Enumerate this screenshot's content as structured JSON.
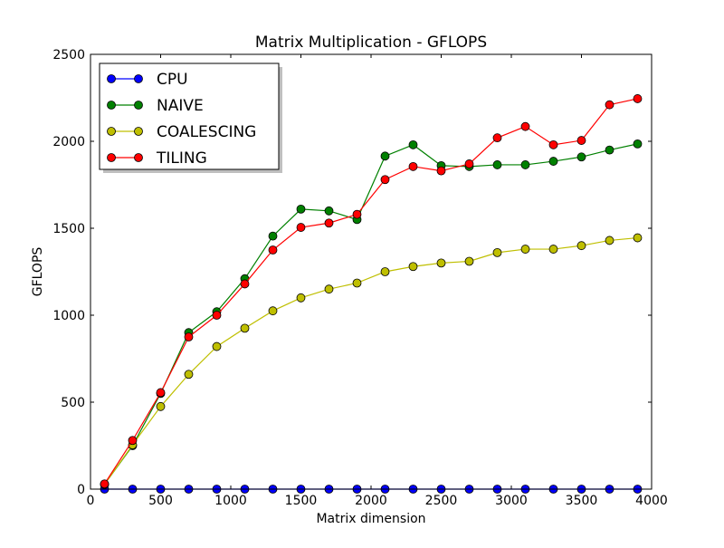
{
  "chart_data": {
    "type": "line",
    "title": "Matrix Multiplication - GFLOPS",
    "xlabel": "Matrix dimension",
    "ylabel": "GFLOPS",
    "xlim": [
      0,
      4000
    ],
    "ylim": [
      0,
      2500
    ],
    "xticks": [
      0,
      500,
      1000,
      1500,
      2000,
      2500,
      3000,
      3500,
      4000
    ],
    "yticks": [
      0,
      500,
      1000,
      1500,
      2000,
      2500
    ],
    "grid": false,
    "legend_position": "top-left",
    "x": [
      100,
      300,
      500,
      700,
      900,
      1100,
      1300,
      1500,
      1700,
      1900,
      2100,
      2300,
      2500,
      2700,
      2900,
      3100,
      3300,
      3500,
      3700,
      3900
    ],
    "series": [
      {
        "name": "CPU",
        "color": "#0000ff",
        "values": [
          0,
          0,
          0,
          0,
          0,
          0,
          0,
          0,
          0,
          0,
          0,
          0,
          0,
          0,
          0,
          0,
          0,
          0,
          0,
          0
        ]
      },
      {
        "name": "NAIVE",
        "color": "#008000",
        "values": [
          28,
          250,
          550,
          900,
          1020,
          1210,
          1455,
          1610,
          1600,
          1550,
          1915,
          1980,
          1860,
          1855,
          1865,
          1865,
          1885,
          1910,
          1950,
          1985
        ]
      },
      {
        "name": "COALESCING",
        "color": "#bfbf00",
        "values": [
          27,
          255,
          475,
          660,
          820,
          925,
          1025,
          1100,
          1150,
          1185,
          1250,
          1280,
          1300,
          1310,
          1360,
          1380,
          1380,
          1400,
          1430,
          1445
        ]
      },
      {
        "name": "TILING",
        "color": "#ff0000",
        "values": [
          30,
          280,
          555,
          875,
          1000,
          1180,
          1375,
          1505,
          1530,
          1580,
          1780,
          1855,
          1830,
          1870,
          2020,
          2085,
          1980,
          2005,
          2210,
          2245
        ]
      }
    ]
  }
}
